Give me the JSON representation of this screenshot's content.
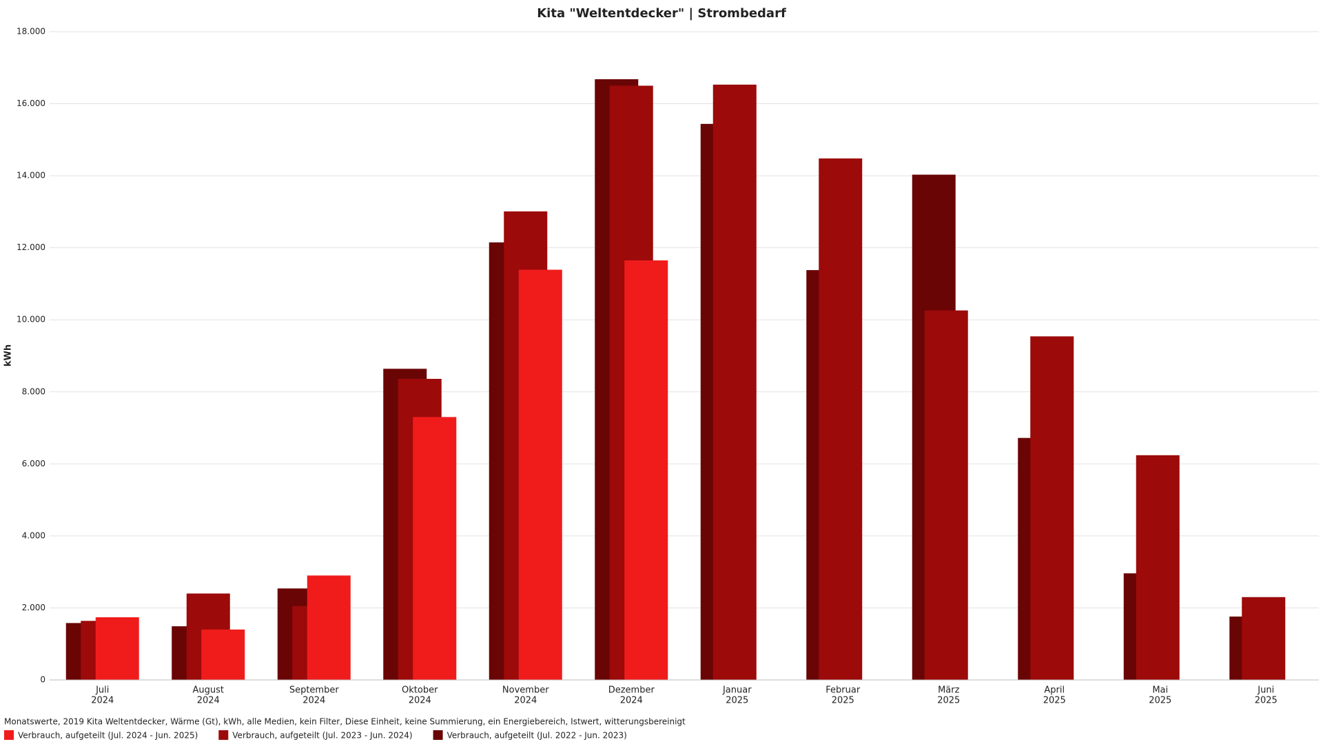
{
  "chart_data": {
    "type": "bar",
    "title": "Kita \"Weltentdecker\" | Strombedarf",
    "y_label": "kWh",
    "footnote": "Monatswerte, 2019 Kita Weltentdecker, Wärme (Gt), kWh, alle Medien, kein Filter, Diese Einheit, keine Summierung, ein Energiebereich, Istwert, witterungsbereinigt",
    "categories": [
      [
        "Juli",
        "2024"
      ],
      [
        "August",
        "2024"
      ],
      [
        "September",
        "2024"
      ],
      [
        "Oktober",
        "2024"
      ],
      [
        "November",
        "2024"
      ],
      [
        "Dezember",
        "2024"
      ],
      [
        "Januar",
        "2025"
      ],
      [
        "Februar",
        "2025"
      ],
      [
        "März",
        "2025"
      ],
      [
        "April",
        "2025"
      ],
      [
        "Mai",
        "2025"
      ],
      [
        "Juni",
        "2025"
      ]
    ],
    "series": [
      {
        "name": "Verbrauch, aufgeteilt (Jul. 2024 - Jun. 2025)",
        "color": "#f01c1c",
        "values": [
          1740,
          1400,
          2900,
          7300,
          11390,
          11650,
          null,
          null,
          null,
          null,
          null,
          null
        ]
      },
      {
        "name": "Verbrauch, aufgeteilt (Jul. 2023 - Jun. 2024)",
        "color": "#9c0a0a",
        "values": [
          1640,
          2400,
          2050,
          8360,
          13010,
          16500,
          16530,
          14480,
          10260,
          9540,
          6240,
          2300
        ]
      },
      {
        "name": "Verbrauch, aufgeteilt (Jul. 2022 - Jun. 2023)",
        "color": "#6a0505",
        "values": [
          1580,
          1490,
          2540,
          8640,
          12150,
          16680,
          15440,
          11380,
          14030,
          6720,
          2960,
          1760
        ]
      }
    ],
    "ylim": [
      0,
      18000
    ],
    "yticks": [
      0,
      {
        "value": 2000,
        "label": "2.000"
      },
      {
        "value": 4000,
        "label": "4.000"
      },
      {
        "value": 6000,
        "label": "6.000"
      },
      {
        "value": 8000,
        "label": "8.000"
      },
      {
        "value": 10000,
        "label": "10.000"
      },
      {
        "value": 12000,
        "label": "12.000"
      },
      {
        "value": 14000,
        "label": "14.000"
      },
      {
        "value": 16000,
        "label": "16.000"
      },
      {
        "value": 18000,
        "label": "18.000"
      }
    ],
    "grid": true
  }
}
